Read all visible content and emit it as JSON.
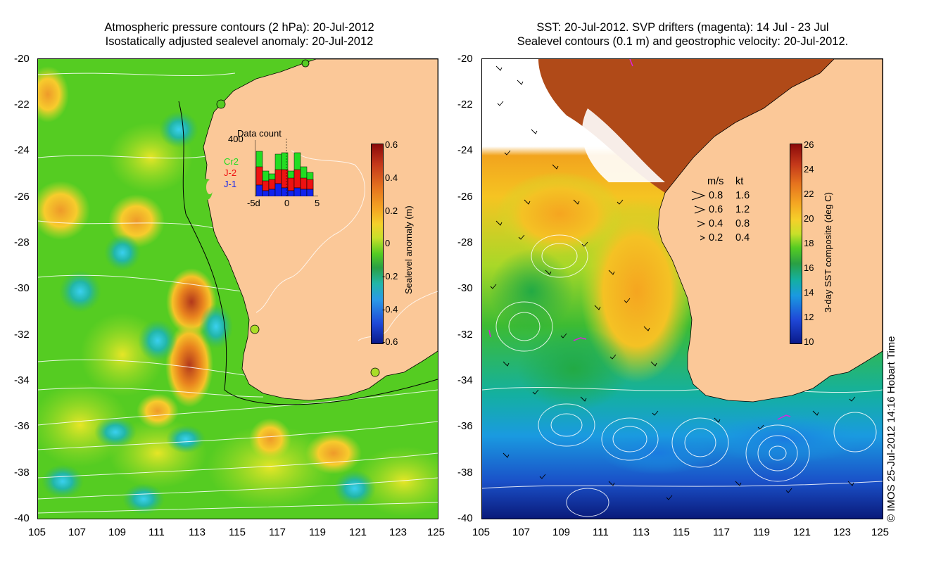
{
  "left_panel": {
    "title_line1": "Atmospheric pressure contours (2 hPa): 20-Jul-2012",
    "title_line2": "Isostatically adjusted sealevel anomaly: 20-Jul-2012",
    "colorbar": {
      "label": "Sealevel anomaly (m)",
      "ticks": [
        "0.6",
        "0.4",
        "0.2",
        "0",
        "-0.2",
        "-0.4",
        "-0.6"
      ],
      "min": -0.6,
      "max": 0.6
    },
    "inset": {
      "title": "Data count",
      "ymax_label": "400",
      "x_labels": [
        "-5d",
        "0",
        "5"
      ],
      "legend": [
        {
          "name": "Cr2",
          "color": "#22dd22"
        },
        {
          "name": "J-2",
          "color": "#ee1111"
        },
        {
          "name": "J-1",
          "color": "#1122ee"
        }
      ]
    }
  },
  "right_panel": {
    "title_line1": "SST: 20-Jul-2012. SVP drifters (magenta): 14 Jul - 23 Jul",
    "title_line2": "Sealevel contours (0.1 m) and geostrophic velocity: 20-Jul-2012.",
    "colorbar": {
      "label": "3-day SST composite (deg C)",
      "ticks": [
        "26",
        "24",
        "22",
        "20",
        "18",
        "16",
        "14",
        "12",
        "10"
      ],
      "min": 10,
      "max": 26
    },
    "velocity_legend": {
      "header_ms": "m/s",
      "header_kt": "kt",
      "rows": [
        {
          "ms": "0.8",
          "kt": "1.6"
        },
        {
          "ms": "0.6",
          "kt": "1.2"
        },
        {
          "ms": "0.4",
          "kt": "0.8"
        },
        {
          "ms": "0.2",
          "kt": "0.4"
        }
      ]
    }
  },
  "axes": {
    "y_ticks": [
      "-20",
      "-22",
      "-24",
      "-26",
      "-28",
      "-30",
      "-32",
      "-34",
      "-36",
      "-38",
      "-40"
    ],
    "x_ticks": [
      "105",
      "107",
      "109",
      "111",
      "113",
      "115",
      "117",
      "119",
      "121",
      "123",
      "125"
    ]
  },
  "credit": "© IMOS 25-Jul-2012 14:16 Hobart Time",
  "colors": {
    "land": "#fbc898",
    "sla_field": "#55cc22",
    "sst_warm": "#f5b820",
    "sst_cool": "#1a9ae0"
  }
}
